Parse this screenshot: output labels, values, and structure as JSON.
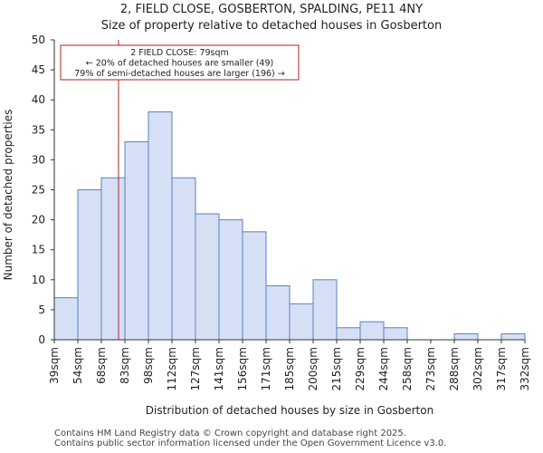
{
  "chart_data": {
    "type": "bar",
    "title": "2, FIELD CLOSE, GOSBERTON, SPALDING, PE11 4NY",
    "subtitle": "Size of property relative to detached houses in Gosberton",
    "xlabel": "Distribution of detached houses by size in Gosberton",
    "ylabel": "Number of detached properties",
    "ylim": [
      0,
      50
    ],
    "yticks": [
      0,
      5,
      10,
      15,
      20,
      25,
      30,
      35,
      40,
      45,
      50
    ],
    "bin_edges": [
      39,
      54,
      68,
      83,
      98,
      112,
      127,
      141,
      156,
      171,
      185,
      200,
      215,
      229,
      244,
      258,
      273,
      288,
      302,
      317,
      332
    ],
    "tick_labels": [
      "39sqm",
      "54sqm",
      "68sqm",
      "83sqm",
      "98sqm",
      "112sqm",
      "127sqm",
      "141sqm",
      "156sqm",
      "171sqm",
      "185sqm",
      "200sqm",
      "215sqm",
      "229sqm",
      "244sqm",
      "258sqm",
      "273sqm",
      "288sqm",
      "302sqm",
      "317sqm",
      "332sqm"
    ],
    "values": [
      7,
      25,
      27,
      33,
      38,
      27,
      21,
      20,
      18,
      9,
      6,
      10,
      2,
      3,
      2,
      0,
      0,
      1,
      0,
      1
    ],
    "bar_color": "#d6e0f5",
    "bar_edge_color": "#5b7fc4",
    "marker": {
      "value": 79,
      "color": "#b22222",
      "annotation": [
        "2 FIELD CLOSE: 79sqm",
        "← 20% of detached houses are smaller (49)",
        "79% of semi-detached houses are larger (196) →"
      ]
    }
  },
  "footer": {
    "line1": "Contains HM Land Registry data © Crown copyright and database right 2025.",
    "line2": "Contains public sector information licensed under the Open Government Licence v3.0."
  }
}
